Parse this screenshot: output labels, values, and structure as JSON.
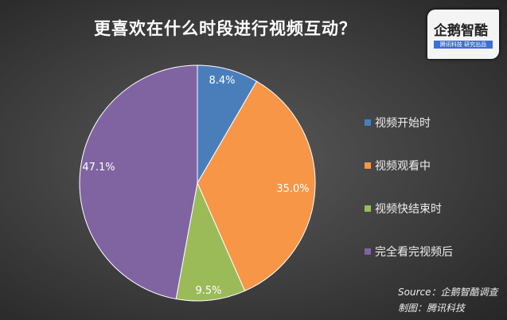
{
  "chart_data": {
    "type": "pie",
    "title": "更喜欢在什么时段进行视频互动？",
    "categories": [
      "视频开始时",
      "视频观看中",
      "视频快结束时",
      "完全看完视频后"
    ],
    "values": [
      8.4,
      35.0,
      9.5,
      47.1
    ],
    "labels": [
      "8.4%",
      "35.0%",
      "9.5%",
      "47.1%"
    ],
    "colors": [
      "#4a7ebb",
      "#f79646",
      "#9bbb59",
      "#8064a2"
    ],
    "legend_position": "right"
  },
  "logo": {
    "name": "企鹅智酷",
    "tagline": "腾讯科技 研究出品"
  },
  "source": "Source：企鹅智酷调查",
  "credit": "制图：腾讯科技"
}
